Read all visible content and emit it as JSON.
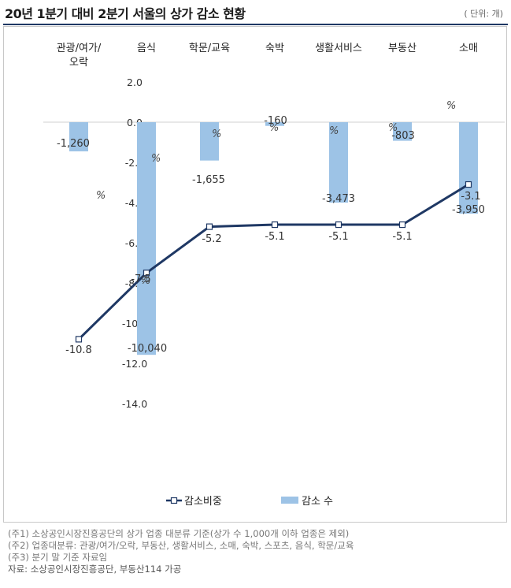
{
  "header": {
    "title": "20년 1분기 대비 2분기 서울의 상가 감소 현황",
    "unit": "( 단위: 개)"
  },
  "notes": [
    "(주1) 소상공인시장진흥공단의 상가 업종 대분류 기준(상가 수 1,000개 이하 업종은 제외)",
    "(주2) 업종대분류: 관광/여가/오락, 부동산, 생활서비스, 소매, 숙박, 스포츠, 음식, 학문/교육",
    "(주3) 분기 말 기준 자료임"
  ],
  "source": "자료: 소상공인시장진흥공단, 부동산114 가공",
  "chart_data": {
    "type": "bar",
    "categories": [
      "관광/여가/오락",
      "음식",
      "학문/교육",
      "숙박",
      "생활서비스",
      "부동산",
      "소매"
    ],
    "category_labels": [
      [
        "관광/여가/",
        "오락"
      ],
      [
        "음식"
      ],
      [
        "학문/교육"
      ],
      [
        "숙박"
      ],
      [
        "생활서비스"
      ],
      [
        "부동산"
      ],
      [
        "소매"
      ]
    ],
    "series": [
      {
        "name": "감소 수",
        "type": "bar",
        "values": [
          -1260,
          -10040,
          -1655,
          -160,
          -3473,
          -803,
          -3950
        ],
        "labels": [
          "-1,260",
          "-10,040",
          "-1,655",
          "-160",
          "-3,473",
          "-803",
          "-3,950"
        ],
        "color": "#9dc3e6"
      },
      {
        "name": "감소비중",
        "type": "line",
        "values": [
          -10.8,
          -7.5,
          -5.2,
          -5.1,
          -5.1,
          -5.1,
          -3.1
        ],
        "labels": [
          "-10.8",
          "-7.5",
          "-5.2",
          "-5.1",
          "-5.1",
          "-5.1",
          "-3.1"
        ],
        "color": "#1f3864"
      }
    ],
    "y_axis": {
      "ylim": [
        -14,
        2
      ],
      "ticks": [
        "2.0",
        "0.0",
        "-2.0",
        "-4.0",
        "-6.0",
        "-8.0",
        "-10.0",
        "-12.0",
        "-14.0"
      ]
    },
    "percent_marks": [
      "%",
      "%",
      "%",
      "%",
      "%",
      "%",
      "%",
      "%"
    ],
    "legend": {
      "position": "bottom",
      "items": [
        "감소비중",
        "감소 수"
      ]
    },
    "grid": false
  }
}
